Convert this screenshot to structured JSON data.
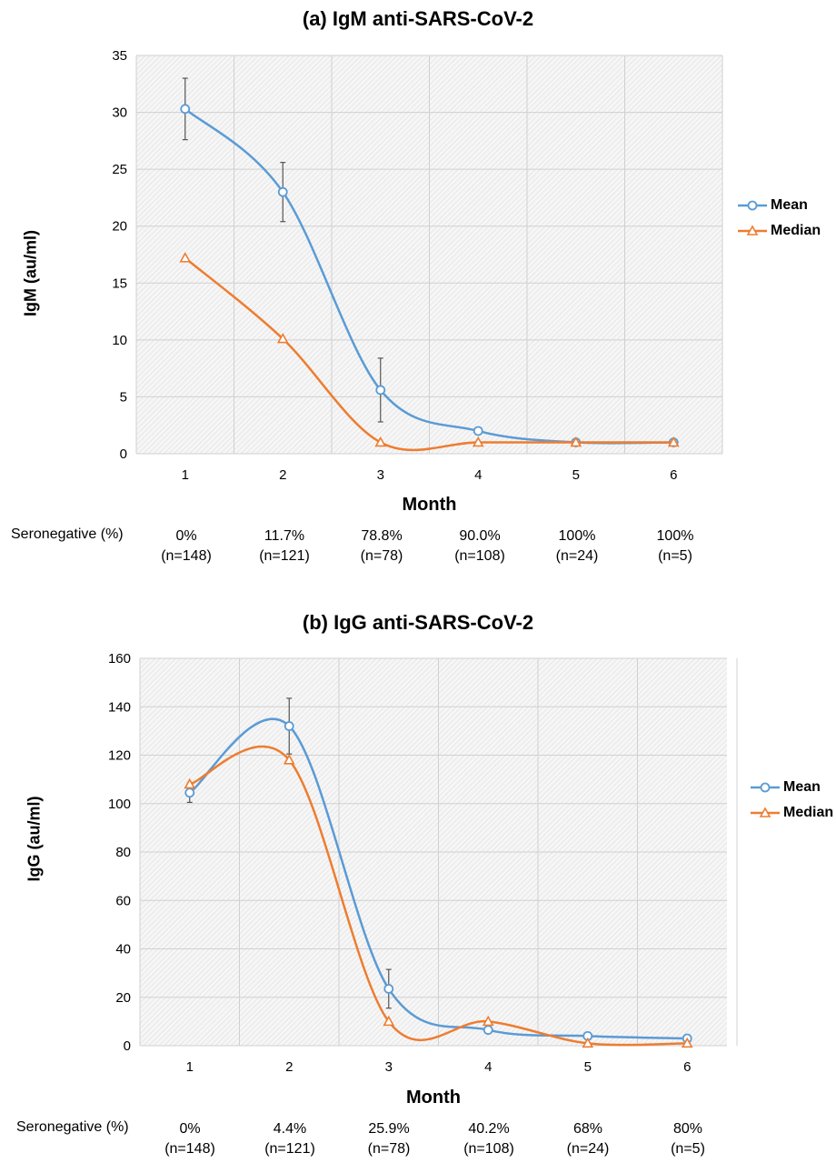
{
  "chart_data": [
    {
      "type": "line",
      "title": "(a) IgM anti-SARS-CoV-2",
      "xlabel": "Month",
      "ylabel": "IgM (au/ml)",
      "x": [
        1,
        2,
        3,
        4,
        5,
        6
      ],
      "ylim": [
        0,
        35
      ],
      "yticks": [
        0,
        5,
        10,
        15,
        20,
        25,
        30,
        35
      ],
      "grid": true,
      "legend_position": "right",
      "series": [
        {
          "name": "Mean",
          "color": "#5b9bd5",
          "marker": "circle",
          "values": [
            30.3,
            23.0,
            5.6,
            2.0,
            1.0,
            1.0
          ],
          "error": [
            2.7,
            2.6,
            2.8,
            0,
            0,
            0
          ]
        },
        {
          "name": "Median",
          "color": "#ed7d31",
          "marker": "triangle",
          "values": [
            17.2,
            10.1,
            1.0,
            1.0,
            1.0,
            1.0
          ]
        }
      ],
      "seronegative": {
        "label": "Seronegative (%)",
        "percent": [
          "0%",
          "11.7%",
          "78.8%",
          "90.0%",
          "100%",
          "100%"
        ],
        "n": [
          "(n=148)",
          "(n=121)",
          "(n=78)",
          "(n=108)",
          "(n=24)",
          "(n=5)"
        ]
      }
    },
    {
      "type": "line",
      "title": "(b) IgG anti-SARS-CoV-2",
      "xlabel": "Month",
      "ylabel": "IgG (au/ml)",
      "x": [
        1,
        2,
        3,
        4,
        5,
        6
      ],
      "ylim": [
        0,
        160
      ],
      "yticks": [
        0,
        20,
        40,
        60,
        80,
        100,
        120,
        140,
        160
      ],
      "grid": true,
      "legend_position": "right",
      "series": [
        {
          "name": "Mean",
          "color": "#5b9bd5",
          "marker": "circle",
          "values": [
            104.5,
            132.0,
            23.5,
            6.5,
            4.0,
            3.0
          ],
          "error": [
            4.0,
            11.5,
            8.0,
            0,
            0,
            0
          ]
        },
        {
          "name": "Median",
          "color": "#ed7d31",
          "marker": "triangle",
          "values": [
            108.0,
            118.0,
            10.0,
            10.0,
            1.0,
            1.0
          ]
        }
      ],
      "seronegative": {
        "label": "Seronegative (%)",
        "percent": [
          "0%",
          "4.4%",
          "25.9%",
          "40.2%",
          "68%",
          "80%"
        ],
        "n": [
          "(n=148)",
          "(n=121)",
          "(n=78)",
          "(n=108)",
          "(n=24)",
          "(n=5)"
        ]
      }
    }
  ]
}
